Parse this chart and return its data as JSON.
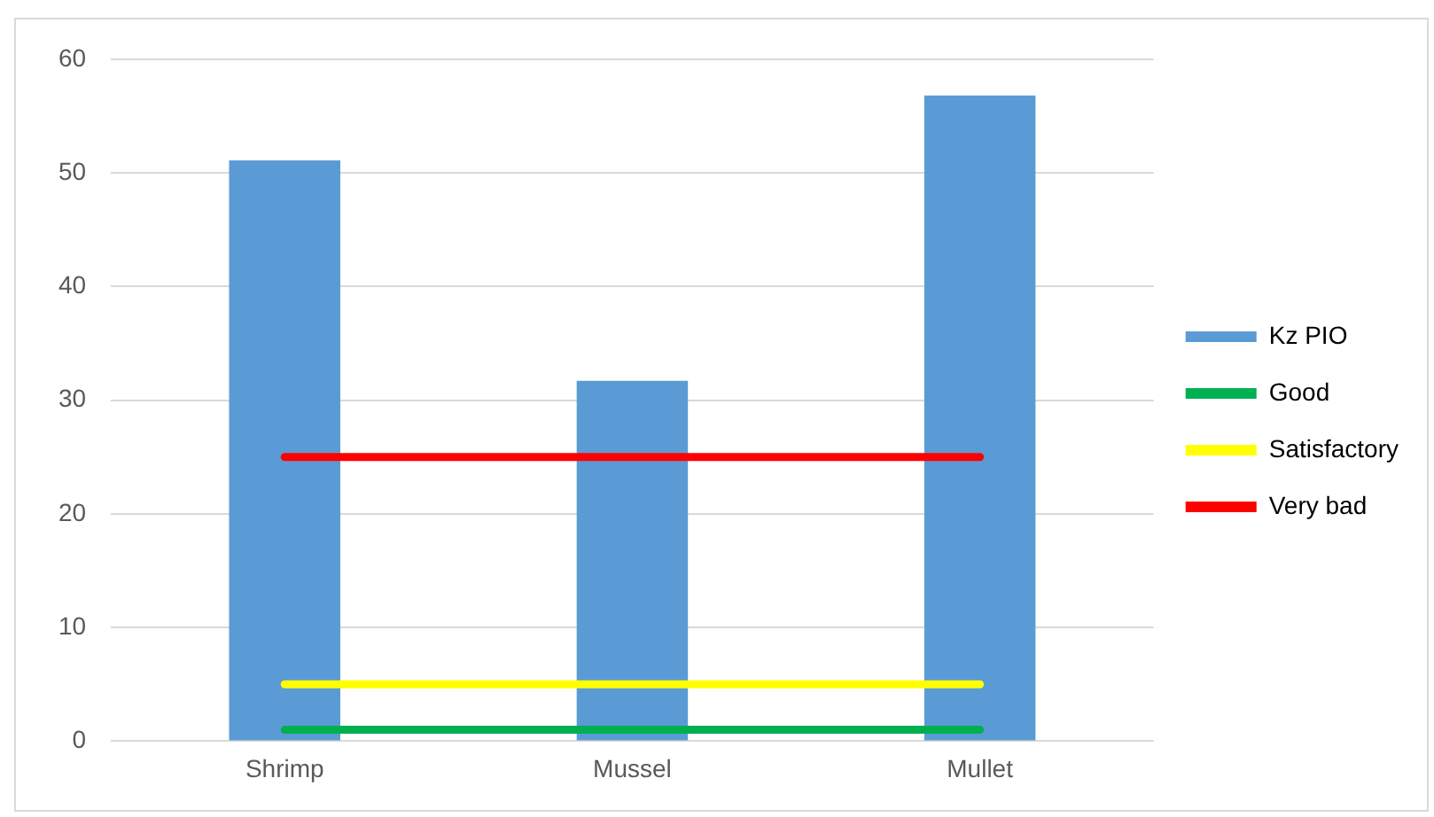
{
  "chart_data": {
    "type": "bar",
    "categories": [
      "Shrimp",
      "Mussel",
      "Mullet"
    ],
    "series": [
      {
        "name": "Kz PIO",
        "color": "#5b9bd5",
        "values": [
          51.1,
          31.7,
          56.8
        ]
      },
      {
        "name": "Good",
        "type": "line",
        "color": "#00b050",
        "values": [
          1,
          1,
          1
        ]
      },
      {
        "name": "Satisfactory",
        "type": "line",
        "color": "#ffff00",
        "values": [
          5,
          5,
          5
        ]
      },
      {
        "name": "Very bad",
        "type": "line",
        "color": "#ff0000",
        "values": [
          25,
          25,
          25
        ]
      }
    ],
    "ylim": [
      0,
      60
    ],
    "yticks": [
      0,
      10,
      20,
      30,
      40,
      50,
      60
    ],
    "grid": "y",
    "legend": "right",
    "marker": "none"
  }
}
